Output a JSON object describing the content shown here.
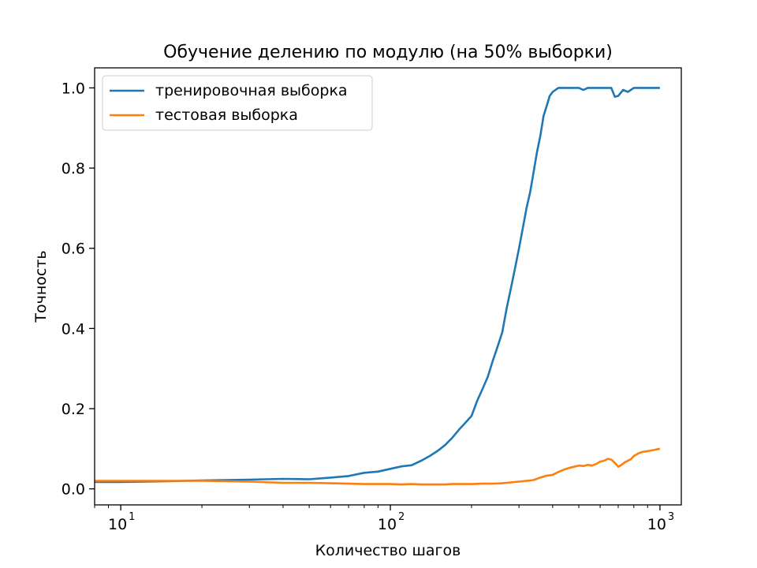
{
  "chart_data": {
    "type": "line",
    "title": "Обучение делению по модулю (на 50% выборки)",
    "xlabel": "Количество шагов",
    "ylabel": "Точность",
    "x_scale": "log",
    "xlim": [
      8,
      1200
    ],
    "ylim": [
      -0.04,
      1.05
    ],
    "x_ticks": [
      {
        "value": 10,
        "label": "10",
        "exp": "1"
      },
      {
        "value": 100,
        "label": "10",
        "exp": "2"
      },
      {
        "value": 1000,
        "label": "10",
        "exp": "3"
      }
    ],
    "y_ticks": [
      0.0,
      0.2,
      0.4,
      0.6,
      0.8,
      1.0
    ],
    "y_tick_labels": [
      "0.0",
      "0.2",
      "0.4",
      "0.6",
      "0.8",
      "1.0"
    ],
    "grid": false,
    "legend_position": "top-left",
    "series": [
      {
        "name": "тренировочная выборка",
        "color": "#1f77b4",
        "x": [
          8,
          10,
          15,
          20,
          30,
          40,
          50,
          60,
          70,
          80,
          90,
          100,
          110,
          120,
          130,
          140,
          150,
          160,
          170,
          180,
          190,
          200,
          210,
          220,
          230,
          240,
          250,
          260,
          270,
          280,
          290,
          300,
          310,
          320,
          330,
          340,
          350,
          360,
          370,
          380,
          390,
          400,
          420,
          440,
          460,
          480,
          500,
          520,
          540,
          560,
          580,
          600,
          630,
          660,
          680,
          700,
          730,
          760,
          800,
          850,
          900,
          1000
        ],
        "y": [
          0.017,
          0.017,
          0.019,
          0.021,
          0.023,
          0.025,
          0.024,
          0.028,
          0.032,
          0.04,
          0.043,
          0.05,
          0.056,
          0.059,
          0.07,
          0.082,
          0.095,
          0.11,
          0.128,
          0.148,
          0.165,
          0.182,
          0.22,
          0.25,
          0.28,
          0.32,
          0.355,
          0.39,
          0.45,
          0.5,
          0.55,
          0.6,
          0.65,
          0.7,
          0.74,
          0.79,
          0.84,
          0.88,
          0.93,
          0.955,
          0.98,
          0.99,
          1.0,
          1.0,
          1.0,
          1.0,
          1.0,
          0.995,
          1.0,
          1.0,
          1.0,
          1.0,
          1.0,
          1.0,
          0.978,
          0.98,
          0.995,
          0.99,
          1.0,
          1.0,
          1.0,
          1.0
        ]
      },
      {
        "name": "тестовая выборка",
        "color": "#ff7f0e",
        "x": [
          8,
          10,
          15,
          20,
          30,
          40,
          50,
          60,
          70,
          80,
          90,
          100,
          110,
          120,
          130,
          140,
          150,
          160,
          170,
          180,
          190,
          200,
          220,
          240,
          260,
          280,
          300,
          320,
          340,
          360,
          380,
          400,
          420,
          440,
          460,
          480,
          500,
          520,
          540,
          560,
          580,
          600,
          620,
          640,
          660,
          680,
          700,
          720,
          740,
          760,
          780,
          800,
          830,
          860,
          900,
          950,
          1000
        ],
        "y": [
          0.02,
          0.02,
          0.02,
          0.02,
          0.018,
          0.015,
          0.015,
          0.014,
          0.013,
          0.012,
          0.012,
          0.012,
          0.011,
          0.012,
          0.011,
          0.011,
          0.011,
          0.011,
          0.012,
          0.012,
          0.012,
          0.012,
          0.013,
          0.013,
          0.014,
          0.016,
          0.018,
          0.02,
          0.022,
          0.028,
          0.033,
          0.035,
          0.042,
          0.048,
          0.052,
          0.055,
          0.058,
          0.057,
          0.06,
          0.058,
          0.062,
          0.068,
          0.07,
          0.075,
          0.073,
          0.065,
          0.055,
          0.06,
          0.066,
          0.07,
          0.074,
          0.082,
          0.088,
          0.092,
          0.094,
          0.097,
          0.1
        ]
      }
    ]
  }
}
